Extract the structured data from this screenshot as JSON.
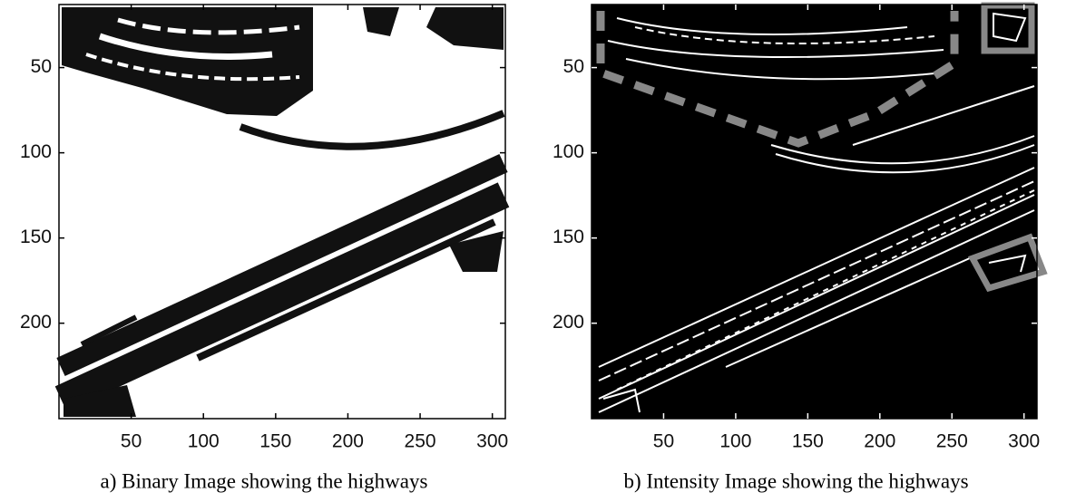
{
  "panels": [
    {
      "caption": "a) Binary Image showing the highways",
      "xlim": [
        0,
        309
      ],
      "ylim": [
        13,
        256
      ],
      "xticks": [
        50,
        100,
        150,
        200,
        250,
        300
      ],
      "yticks": [
        50,
        100,
        150,
        200
      ]
    },
    {
      "caption": "b) Intensity Image showing the highways",
      "xlim": [
        0,
        309
      ],
      "ylim": [
        13,
        256
      ],
      "xticks": [
        50,
        100,
        150,
        200,
        250,
        300
      ],
      "yticks": [
        50,
        100,
        150,
        200
      ]
    }
  ]
}
